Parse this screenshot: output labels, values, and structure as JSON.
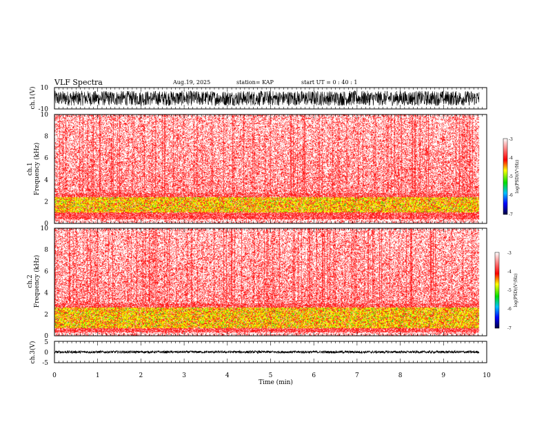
{
  "header": {
    "title": "VLF Spectra",
    "date": "Aug.19, 2025",
    "station": "station= KAP",
    "start": "start  UT  =   0  : 40 : 1"
  },
  "chart_data": [
    {
      "type": "line",
      "name": "ch1-waveform",
      "ylabel": "ch.1(V)",
      "ylim": [
        -10,
        10
      ],
      "yticks": [
        "10",
        "-10"
      ],
      "xlim": [
        0,
        10
      ],
      "data_extent_min": 9.83,
      "description_amplitude": [
        -7,
        7
      ]
    },
    {
      "type": "heatmap",
      "name": "ch1-spectrogram",
      "ylabel": "Frequency (kHz)",
      "chlabel": "ch.1",
      "ylim": [
        0,
        10
      ],
      "yticks": [
        "0",
        "2",
        "4",
        "6",
        "8",
        "10"
      ],
      "xlim": [
        0,
        10
      ],
      "band": [
        1.0,
        2.4
      ],
      "colorbar": {
        "label": "log(PSD)(V²/Hz)",
        "range": [
          -7,
          -3
        ],
        "ticks": [
          "-3",
          "-4",
          "-5",
          "-6",
          "-7"
        ]
      }
    },
    {
      "type": "heatmap",
      "name": "ch2-spectrogram",
      "ylabel": "Frequency (kHz)",
      "chlabel": "ch.2",
      "ylim": [
        0,
        10
      ],
      "yticks": [
        "0",
        "2",
        "4",
        "6",
        "8",
        "10"
      ],
      "xlim": [
        0,
        10
      ],
      "band": [
        0.7,
        2.6
      ],
      "colorbar": {
        "label": "log(PSD)(V²/Hz)",
        "range": [
          -7,
          -3
        ],
        "ticks": [
          "-3",
          "-4",
          "-5",
          "-6",
          "-7"
        ]
      }
    },
    {
      "type": "line",
      "name": "ch3-waveform",
      "ylabel": "ch.3(V)",
      "ylim": [
        -5,
        5
      ],
      "yticks": [
        "5",
        "0",
        "-5"
      ],
      "xlim": [
        0,
        10
      ],
      "data_extent_min": 9.83,
      "description_amplitude": [
        -0.6,
        0.6
      ]
    }
  ],
  "xaxis": {
    "label": "Time (min)",
    "ticks": [
      "0",
      "1",
      "2",
      "3",
      "4",
      "5",
      "6",
      "7",
      "8",
      "9",
      "10"
    ]
  },
  "colors": {
    "line": "#000000",
    "red": "#ff2020",
    "yellow": "#f2f200",
    "green": "#22dd22"
  }
}
